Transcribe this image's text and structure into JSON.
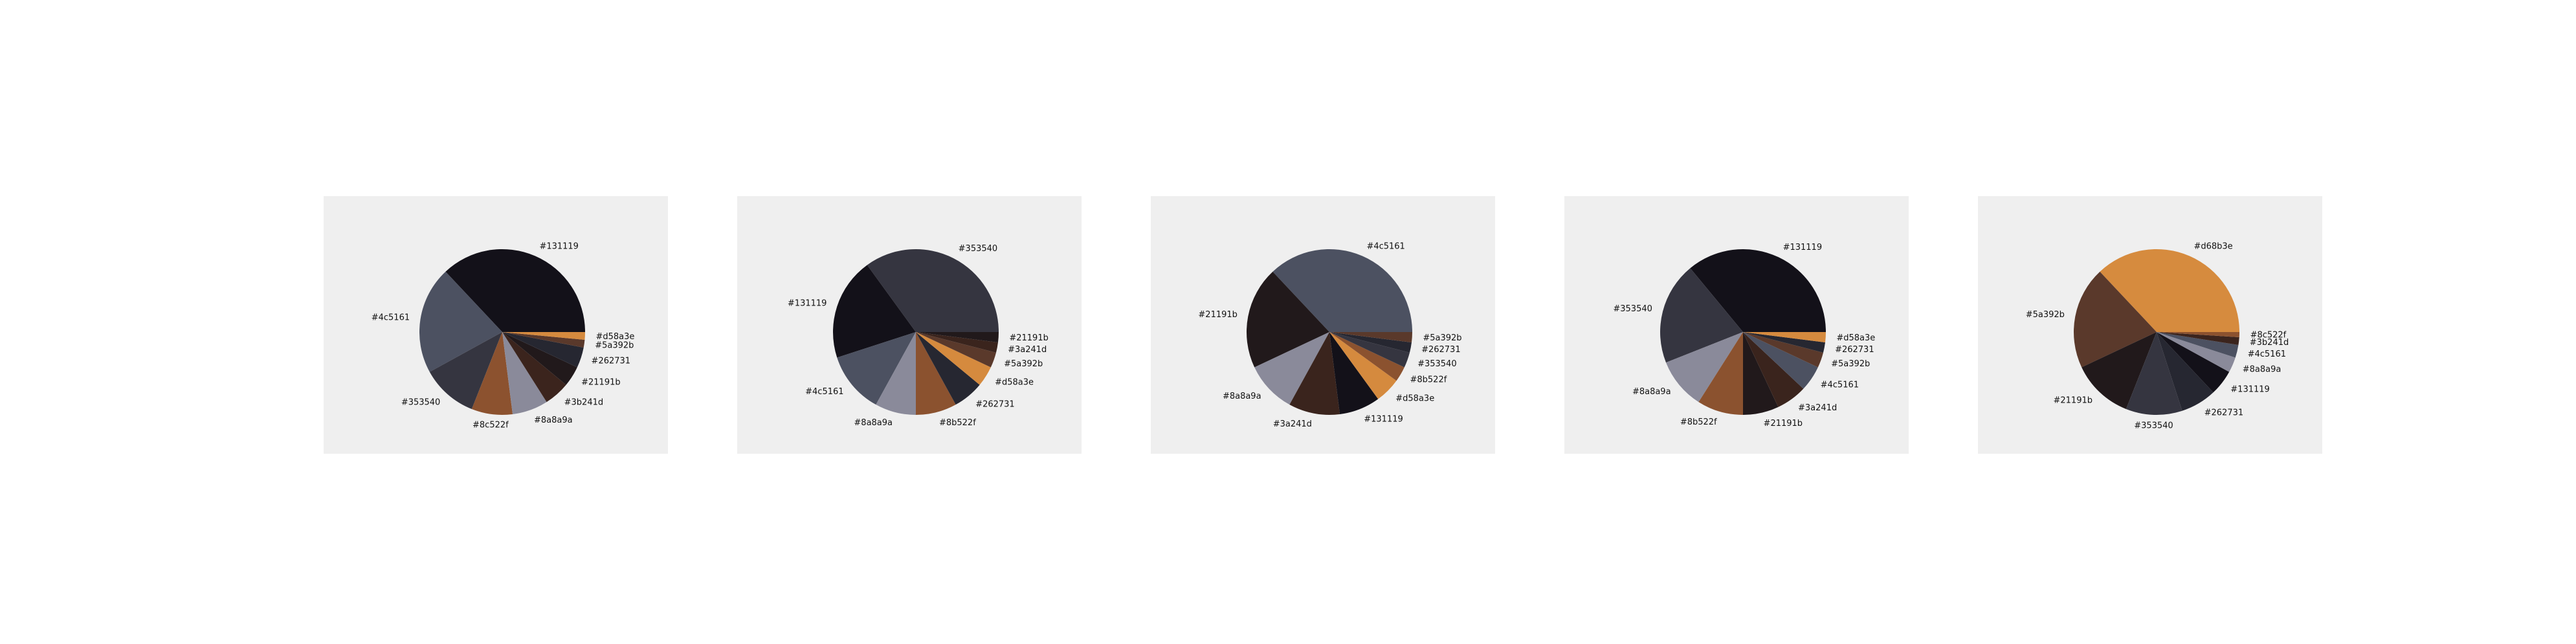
{
  "palette": {
    "p131119": "#131119",
    "p4c5161": "#4c5161",
    "p353540": "#353540",
    "p8c522f": "#8c522f",
    "p8a8a9a": "#8a8a9a",
    "p3b241d": "#3b241d",
    "p21191b": "#21191b",
    "p262731": "#262731",
    "p5a392b": "#5a392b",
    "pd58a3e": "#d58a3e",
    "p8b522f": "#8b522f",
    "p3a241d": "#3a241d",
    "p8a8a9a_b": "#8a8a9a",
    "pd68b3e": "#d68b3e",
    "p8a8a9a_c": "#8a8a9a"
  },
  "chart_data": [
    {
      "type": "pie",
      "title": "",
      "labels": [
        "#131119",
        "#4c5161",
        "#353540",
        "#8c522f",
        "#8a8a9a",
        "#3b241d",
        "#21191b",
        "#262731",
        "#5a392b",
        "#d58a3e"
      ],
      "values": [
        37.0,
        21.0,
        11.0,
        8.0,
        7.0,
        5.0,
        4.0,
        4.0,
        1.5,
        1.5
      ],
      "colors": [
        "#131119",
        "#4c5161",
        "#353540",
        "#8c522f",
        "#8a8a9a",
        "#3b241d",
        "#21191b",
        "#262731",
        "#5a392b",
        "#d58a3e"
      ]
    },
    {
      "type": "pie",
      "title": "",
      "labels": [
        "#353540",
        "#131119",
        "#4c5161",
        "#8a8a9a",
        "#8b522f",
        "#262731",
        "#d58a3e",
        "#5a392b",
        "#3a241d",
        "#21191b"
      ],
      "values": [
        35.0,
        20.0,
        12.0,
        8.0,
        8.0,
        6.0,
        4.0,
        3.0,
        2.0,
        2.0
      ],
      "colors": [
        "#353540",
        "#131119",
        "#4c5161",
        "#8a8a9a",
        "#8b522f",
        "#262731",
        "#d58a3e",
        "#5a392b",
        "#3a241d",
        "#21191b"
      ]
    },
    {
      "type": "pie",
      "title": "",
      "labels": [
        "#4c5161",
        "#21191b",
        "#8a8a9a",
        "#3a241d",
        "#131119",
        "#d58a3e",
        "#8b522f",
        "#353540",
        "#262731",
        "#5a392b"
      ],
      "values": [
        37.0,
        20.0,
        10.0,
        10.0,
        8.0,
        5.0,
        3.0,
        3.0,
        2.0,
        2.0
      ],
      "colors": [
        "#4c5161",
        "#21191b",
        "#8a8a9a",
        "#3a241d",
        "#131119",
        "#d58a3e",
        "#8b522f",
        "#353540",
        "#262731",
        "#5a392b"
      ]
    },
    {
      "type": "pie",
      "title": "",
      "labels": [
        "#131119",
        "#353540",
        "#8a8a9a",
        "#8b522f",
        "#21191b",
        "#3a241d",
        "#4c5161",
        "#5a392b",
        "#262731",
        "#d58a3e"
      ],
      "values": [
        36.0,
        20.0,
        10.0,
        9.0,
        7.0,
        6.0,
        5.0,
        3.0,
        2.0,
        2.0
      ],
      "colors": [
        "#131119",
        "#353540",
        "#8a8a9a",
        "#8b522f",
        "#21191b",
        "#3a241d",
        "#4c5161",
        "#5a392b",
        "#262731",
        "#d58a3e"
      ]
    },
    {
      "type": "pie",
      "title": "",
      "labels": [
        "#d68b3e",
        "#5a392b",
        "#21191b",
        "#353540",
        "#262731",
        "#131119",
        "#8a8a9a",
        "#4c5161",
        "#3b241d",
        "#8c522f"
      ],
      "values": [
        37.0,
        20.0,
        12.0,
        11.0,
        7.0,
        5.0,
        3.0,
        2.5,
        1.5,
        1.0
      ],
      "colors": [
        "#d68b3e",
        "#5a392b",
        "#21191b",
        "#353540",
        "#262731",
        "#131119",
        "#8a8a9a",
        "#4c5161",
        "#3b241d",
        "#8c522f"
      ]
    }
  ]
}
